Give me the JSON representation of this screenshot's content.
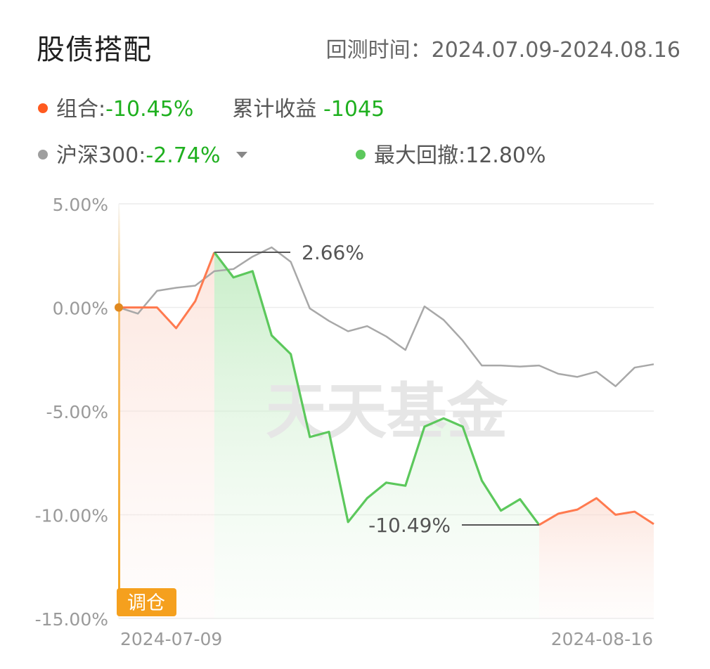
{
  "header": {
    "title": "股债搭配",
    "period_label": "回测时间：",
    "period_value": "2024.07.09-2024.08.16"
  },
  "legend": {
    "portfolio_label": "组合:",
    "portfolio_value": "-10.45%",
    "cumulative_label": "累计收益",
    "cumulative_value": "-1045",
    "benchmark_label": "沪深300:",
    "benchmark_value": "-2.74%",
    "drawdown_label": "最大回撤:",
    "drawdown_value": "12.80%"
  },
  "colors": {
    "portfolio": "#ff7a4f",
    "benchmark": "#a8a8a8",
    "drawdown": "#5cc85c",
    "accent_orange": "#f5a623",
    "negative_green": "#1fb01f",
    "start_dot": "#e0891f"
  },
  "watermark": "天天基金",
  "rebalance_tag": "调仓",
  "chart_data": {
    "type": "line",
    "x": [
      "2024-07-09",
      "2024-07-10",
      "2024-07-11",
      "2024-07-12",
      "2024-07-15",
      "2024-07-16",
      "2024-07-17",
      "2024-07-18",
      "2024-07-19",
      "2024-07-22",
      "2024-07-23",
      "2024-07-24",
      "2024-07-25",
      "2024-07-26",
      "2024-07-29",
      "2024-07-30",
      "2024-07-31",
      "2024-08-01",
      "2024-08-02",
      "2024-08-05",
      "2024-08-06",
      "2024-08-07",
      "2024-08-08",
      "2024-08-09",
      "2024-08-12",
      "2024-08-13",
      "2024-08-14",
      "2024-08-15",
      "2024-08-16"
    ],
    "x_tick_labels": [
      "2024-07-09",
      "2024-08-16"
    ],
    "series": [
      {
        "name": "组合",
        "values": [
          0.0,
          0.0,
          0.0,
          -1.0,
          0.3,
          2.66,
          1.45,
          1.75,
          -1.35,
          -2.25,
          -6.25,
          -6.0,
          -10.35,
          -9.2,
          -8.45,
          -8.6,
          -5.75,
          -5.35,
          -5.75,
          -8.35,
          -9.8,
          -9.25,
          -10.49,
          -9.95,
          -9.75,
          -9.2,
          -10.0,
          -9.85,
          -10.45
        ]
      },
      {
        "name": "沪深300",
        "values": [
          0.0,
          -0.3,
          0.8,
          0.95,
          1.05,
          1.75,
          1.85,
          2.45,
          2.9,
          2.2,
          -0.05,
          -0.65,
          -1.15,
          -0.9,
          -1.4,
          -2.05,
          0.05,
          -0.6,
          -1.6,
          -2.8,
          -2.8,
          -2.85,
          -2.8,
          -3.2,
          -3.35,
          -3.1,
          -3.8,
          -2.9,
          -2.74
        ]
      }
    ],
    "drawdown": {
      "start_index": 5,
      "end_index": 22,
      "peak_value": 2.66,
      "trough_value": -10.49
    },
    "annotations": [
      {
        "text": "2.66%",
        "value": 2.66
      },
      {
        "text": "-10.49%",
        "value": -10.49
      }
    ],
    "ylim": [
      -15,
      5
    ],
    "y_ticks": [
      5,
      0,
      -5,
      -10,
      -15
    ],
    "y_tick_labels": [
      "5.00%",
      "0.00%",
      "-5.00%",
      "-10.00%",
      "-15.00%"
    ],
    "grid": true
  }
}
